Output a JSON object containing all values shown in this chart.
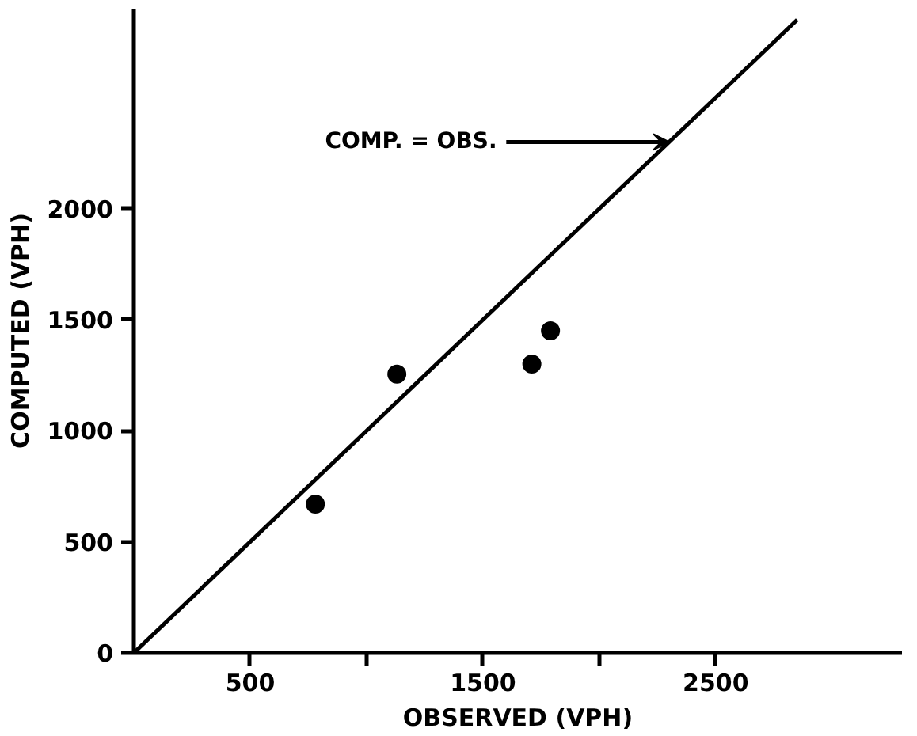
{
  "chart_data": {
    "type": "scatter",
    "xlabel": "OBSERVED (VPH)",
    "ylabel": "COMPUTED (VPH)",
    "marker": "circle",
    "grid": false,
    "xlim": [
      0,
      3300
    ],
    "ylim": [
      0,
      2900
    ],
    "xticks": [
      500,
      {
        "value": 1000,
        "label": null
      },
      1500,
      {
        "value": 2000,
        "label": null
      },
      2500
    ],
    "yticks": [
      0,
      500,
      1000,
      1500,
      2000
    ],
    "series": [
      {
        "color": "#000000",
        "x": [
          780,
          1130,
          1710,
          1790
        ],
        "values": [
          670,
          1255,
          1300,
          1450
        ]
      },
      {
        "type": "line",
        "marker": "none",
        "color": "#000000",
        "x": [
          0,
          2850
        ],
        "values": [
          0,
          2850
        ]
      }
    ],
    "annotations": [
      {
        "text": "COMP. = OBS.",
        "x": 2300,
        "y": 2300
      }
    ]
  }
}
